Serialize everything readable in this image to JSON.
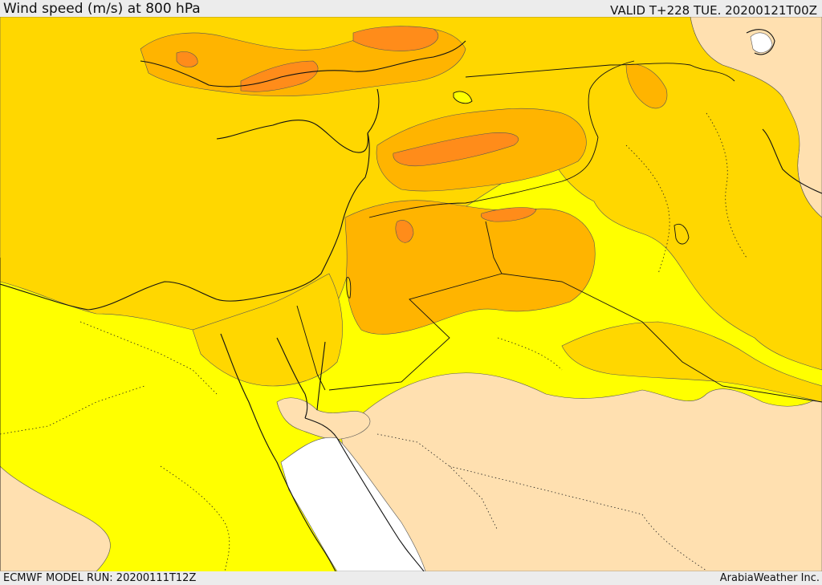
{
  "header": {
    "title": "Wind speed (m/s) at 800 hPa",
    "valid": "VALID T+228 TUE. 20200121T00Z"
  },
  "footer": {
    "model_run": "ECMWF MODEL RUN: 20200111T12Z",
    "credit": "ArabiaWeather Inc."
  },
  "map": {
    "variable": "wind speed",
    "level": "800 hPa",
    "colors": {
      "calm": "#ffffff",
      "low": "#ffe0b0",
      "moderate": "#ffff00",
      "strong": "#ffd700",
      "stronger": "#ffb400",
      "strongest": "#ff8c1a",
      "peak": "#ff7020"
    }
  }
}
